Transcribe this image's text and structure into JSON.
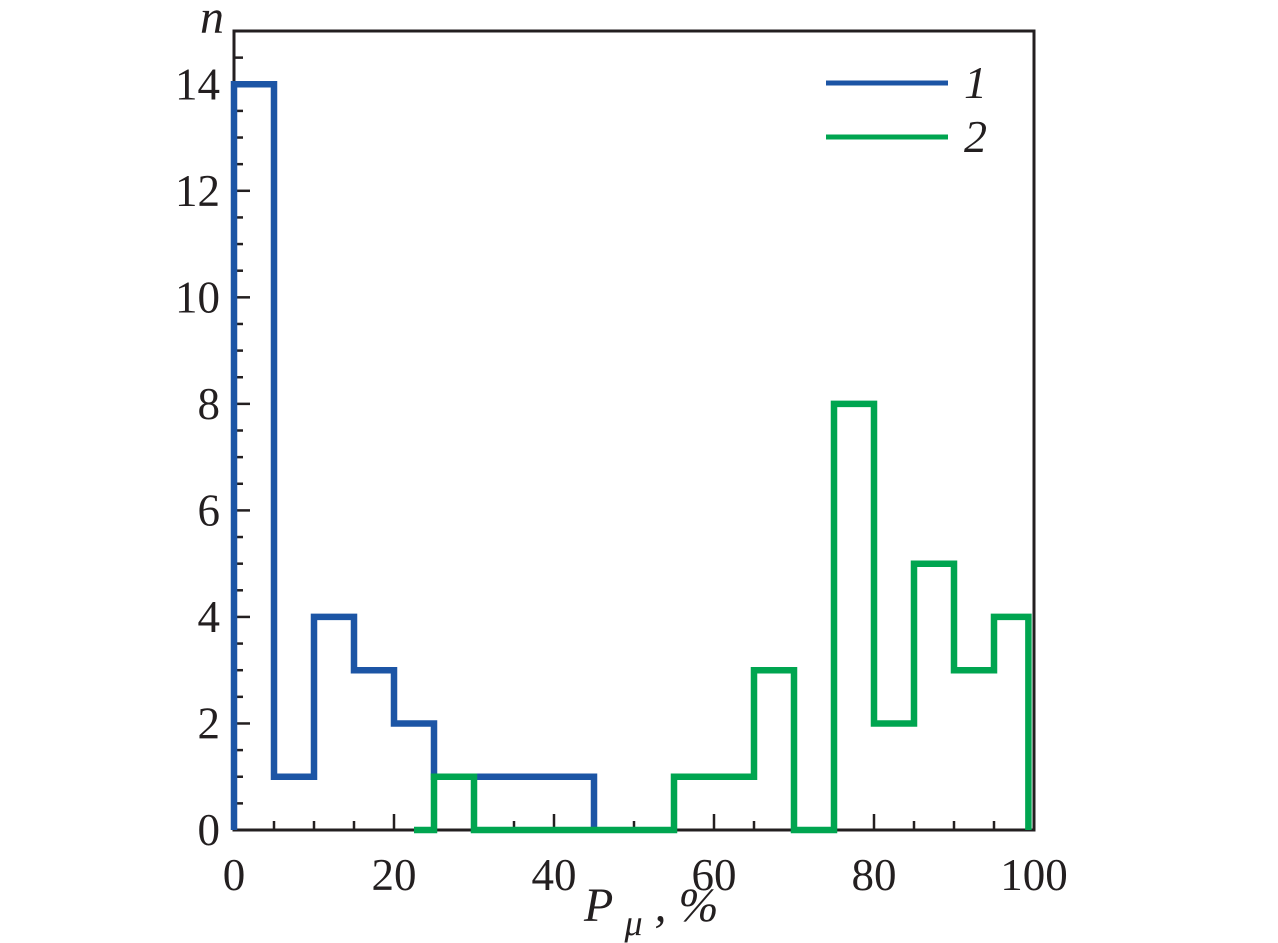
{
  "colors": {
    "background": "#ffffff",
    "axis": "#231f20",
    "series1_blue": "#1c55a5",
    "series2_green": "#00a550"
  },
  "chart_data": {
    "type": "step-histogram",
    "title": "",
    "ylabel": "n",
    "xlabel": {
      "main": "P",
      "sub": "μ",
      "suffix": ", %"
    },
    "xlim": [
      0,
      100
    ],
    "ylim": [
      0,
      15
    ],
    "x_major_ticks": [
      0,
      20,
      40,
      60,
      80,
      100
    ],
    "x_minor_step": 5,
    "y_major_ticks": [
      0,
      2,
      4,
      6,
      8,
      10,
      12,
      14
    ],
    "y_minor_step": 0.5,
    "grid": false,
    "legend_position": "top-right",
    "series": [
      {
        "name": "1",
        "color": "#1c55a5",
        "bins": [
          {
            "range": [
              0,
              5
            ],
            "count": 14
          },
          {
            "range": [
              5,
              10
            ],
            "count": 1
          },
          {
            "range": [
              10,
              15
            ],
            "count": 4
          },
          {
            "range": [
              15,
              20
            ],
            "count": 3
          },
          {
            "range": [
              20,
              25
            ],
            "count": 2
          },
          {
            "range": [
              25,
              45
            ],
            "count": 1
          }
        ],
        "outline_points": [
          [
            0,
            0
          ],
          [
            0,
            14
          ],
          [
            5,
            14
          ],
          [
            5,
            1
          ],
          [
            10,
            1
          ],
          [
            10,
            4
          ],
          [
            15,
            4
          ],
          [
            15,
            3
          ],
          [
            20,
            3
          ],
          [
            20,
            2
          ],
          [
            25,
            2
          ],
          [
            25,
            1
          ],
          [
            45,
            1
          ],
          [
            45,
            0
          ]
        ]
      },
      {
        "name": "2",
        "color": "#00a550",
        "bins": [
          {
            "range": [
              22.5,
              25
            ],
            "count": 0
          },
          {
            "range": [
              25,
              30
            ],
            "count": 1
          },
          {
            "range": [
              30,
              55
            ],
            "count": 0
          },
          {
            "range": [
              55,
              65
            ],
            "count": 1
          },
          {
            "range": [
              65,
              70
            ],
            "count": 3
          },
          {
            "range": [
              70,
              75
            ],
            "count": 0
          },
          {
            "range": [
              75,
              80
            ],
            "count": 8
          },
          {
            "range": [
              80,
              85
            ],
            "count": 2
          },
          {
            "range": [
              85,
              90
            ],
            "count": 5
          },
          {
            "range": [
              90,
              95
            ],
            "count": 3
          },
          {
            "range": [
              95,
              100
            ],
            "count": 4
          }
        ],
        "outline_points": [
          [
            22.5,
            0
          ],
          [
            25,
            0
          ],
          [
            25,
            1
          ],
          [
            30,
            1
          ],
          [
            30,
            0
          ],
          [
            55,
            0
          ],
          [
            55,
            1
          ],
          [
            65,
            1
          ],
          [
            65,
            3
          ],
          [
            70,
            3
          ],
          [
            70,
            0
          ],
          [
            75,
            0
          ],
          [
            75,
            8
          ],
          [
            80,
            8
          ],
          [
            80,
            2
          ],
          [
            85,
            2
          ],
          [
            85,
            5
          ],
          [
            90,
            5
          ],
          [
            90,
            3
          ],
          [
            95,
            3
          ],
          [
            95,
            4
          ],
          [
            99.3,
            4
          ],
          [
            99.3,
            0
          ]
        ]
      }
    ]
  }
}
